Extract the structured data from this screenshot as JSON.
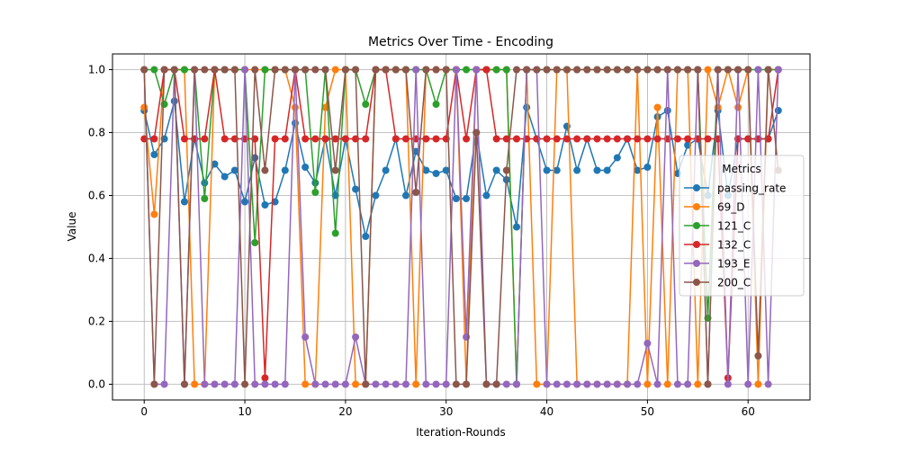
{
  "chart_data": {
    "type": "line",
    "title": "Metrics Over Time - Encoding",
    "xlabel": "Iteration-Rounds",
    "ylabel": "Value",
    "xlim": [
      -3.15,
      66.15
    ],
    "ylim": [
      -0.05,
      1.05
    ],
    "x_ticks": [
      0,
      10,
      20,
      30,
      40,
      50,
      60
    ],
    "y_ticks": [
      0.0,
      0.2,
      0.4,
      0.6,
      0.8,
      1.0
    ],
    "x_tick_labels": [
      "0",
      "10",
      "20",
      "30",
      "40",
      "50",
      "60"
    ],
    "y_tick_labels": [
      "0.0",
      "0.2",
      "0.4",
      "0.6",
      "0.8",
      "1.0"
    ],
    "grid": true,
    "legend": {
      "title": "Metrics",
      "placement": "center-right"
    },
    "x": [
      0,
      1,
      2,
      3,
      4,
      5,
      6,
      7,
      8,
      9,
      10,
      11,
      12,
      13,
      14,
      15,
      16,
      17,
      18,
      19,
      20,
      21,
      22,
      23,
      24,
      25,
      26,
      27,
      28,
      29,
      30,
      31,
      32,
      33,
      34,
      35,
      36,
      37,
      38,
      39,
      40,
      41,
      42,
      43,
      44,
      45,
      46,
      47,
      48,
      49,
      50,
      51,
      52,
      53,
      54,
      55,
      56,
      57,
      58,
      59,
      60,
      61,
      62,
      63
    ],
    "series": [
      {
        "name": "passing_rate",
        "color": "#1f77b4",
        "values": [
          0.87,
          0.73,
          0.78,
          0.9,
          0.58,
          0.78,
          0.64,
          0.7,
          0.66,
          0.68,
          0.58,
          0.72,
          0.57,
          0.58,
          0.68,
          0.83,
          0.69,
          0.64,
          0.78,
          0.6,
          0.78,
          0.62,
          0.47,
          0.6,
          0.68,
          0.78,
          0.6,
          0.74,
          0.68,
          0.67,
          0.68,
          0.59,
          0.59,
          0.8,
          0.6,
          0.68,
          0.65,
          0.5,
          0.88,
          0.78,
          0.68,
          0.68,
          0.82,
          0.68,
          0.78,
          0.68,
          0.68,
          0.72,
          0.78,
          0.68,
          0.69,
          0.85,
          0.87,
          0.67,
          0.76,
          0.78,
          0.6,
          0.87,
          0.6,
          0.78,
          0.78,
          0.78,
          0.78,
          0.87
        ]
      },
      {
        "name": "69_D",
        "color": "#ff7f0e",
        "values": [
          0.88,
          0.54,
          1.0,
          1.0,
          1.0,
          0.0,
          0.0,
          1.0,
          1.0,
          1.0,
          1.0,
          1.0,
          1.0,
          1.0,
          1.0,
          0.88,
          0.0,
          0.0,
          0.88,
          1.0,
          1.0,
          0.0,
          0.0,
          1.0,
          1.0,
          1.0,
          1.0,
          0.0,
          1.0,
          1.0,
          1.0,
          1.0,
          0.0,
          1.0,
          1.0,
          1.0,
          1.0,
          0.0,
          1.0,
          0.0,
          0.0,
          1.0,
          1.0,
          0.0,
          0.0,
          0.0,
          0.0,
          0.0,
          0.0,
          1.0,
          0.0,
          0.88,
          0.0,
          1.0,
          1.0,
          0.0,
          1.0,
          0.88,
          1.0,
          0.88,
          1.0,
          0.0,
          1.0,
          1.0
        ]
      },
      {
        "name": "121_C",
        "color": "#2ca02c",
        "values": [
          1.0,
          1.0,
          0.89,
          1.0,
          1.0,
          1.0,
          0.59,
          1.0,
          1.0,
          1.0,
          1.0,
          0.45,
          1.0,
          1.0,
          1.0,
          1.0,
          1.0,
          0.61,
          1.0,
          0.48,
          1.0,
          1.0,
          0.89,
          1.0,
          1.0,
          1.0,
          1.0,
          1.0,
          1.0,
          0.89,
          1.0,
          1.0,
          1.0,
          1.0,
          1.0,
          1.0,
          1.0,
          0.0,
          1.0,
          1.0,
          1.0,
          1.0,
          1.0,
          1.0,
          1.0,
          1.0,
          1.0,
          1.0,
          1.0,
          1.0,
          1.0,
          1.0,
          1.0,
          1.0,
          1.0,
          1.0,
          0.21,
          1.0,
          1.0,
          1.0,
          1.0,
          1.0,
          1.0,
          1.0
        ]
      },
      {
        "name": "132_C",
        "color": "#d62728",
        "values": [
          0.78,
          0.78,
          1.0,
          1.0,
          0.78,
          0.78,
          0.78,
          1.0,
          0.78,
          0.78,
          0.78,
          0.78,
          0.02,
          0.78,
          0.78,
          1.0,
          0.78,
          0.78,
          0.78,
          0.78,
          0.78,
          0.78,
          0.78,
          1.0,
          1.0,
          0.78,
          0.78,
          0.78,
          0.78,
          0.78,
          0.78,
          1.0,
          0.78,
          1.0,
          1.0,
          0.78,
          0.78,
          0.78,
          0.78,
          0.78,
          0.78,
          0.78,
          0.78,
          0.78,
          0.78,
          0.78,
          0.78,
          0.78,
          0.78,
          0.78,
          0.78,
          0.78,
          0.78,
          0.78,
          0.78,
          0.78,
          0.78,
          0.78,
          0.02,
          0.78,
          0.78,
          0.78,
          0.78,
          1.0
        ]
      },
      {
        "name": "193_E",
        "color": "#9467bd",
        "values": [
          1.0,
          0.0,
          0.0,
          1.0,
          0.0,
          1.0,
          0.0,
          0.0,
          0.0,
          0.0,
          1.0,
          0.0,
          0.0,
          0.0,
          0.0,
          1.0,
          0.15,
          0.0,
          0.0,
          0.0,
          0.0,
          0.15,
          0.0,
          0.0,
          0.0,
          0.0,
          0.0,
          1.0,
          0.0,
          0.0,
          0.0,
          1.0,
          0.15,
          1.0,
          0.0,
          0.0,
          0.0,
          0.0,
          1.0,
          1.0,
          0.0,
          0.0,
          0.0,
          0.0,
          0.0,
          0.0,
          0.0,
          0.0,
          0.0,
          0.0,
          0.13,
          0.0,
          1.0,
          0.0,
          0.0,
          1.0,
          0.0,
          1.0,
          0.0,
          1.0,
          0.0,
          1.0,
          0.0,
          1.0
        ]
      },
      {
        "name": "200_C",
        "color": "#8c564b",
        "values": [
          1.0,
          0.0,
          1.0,
          1.0,
          0.0,
          1.0,
          1.0,
          1.0,
          1.0,
          1.0,
          0.0,
          1.0,
          0.68,
          1.0,
          1.0,
          1.0,
          1.0,
          1.0,
          1.0,
          0.68,
          1.0,
          1.0,
          0.0,
          1.0,
          1.0,
          1.0,
          1.0,
          0.61,
          1.0,
          1.0,
          1.0,
          0.0,
          0.0,
          0.8,
          0.0,
          0.0,
          0.68,
          1.0,
          1.0,
          1.0,
          1.0,
          1.0,
          1.0,
          1.0,
          1.0,
          1.0,
          1.0,
          1.0,
          1.0,
          1.0,
          1.0,
          1.0,
          1.0,
          1.0,
          1.0,
          1.0,
          0.0,
          1.0,
          1.0,
          1.0,
          1.0,
          0.09,
          1.0,
          0.68
        ]
      }
    ]
  }
}
